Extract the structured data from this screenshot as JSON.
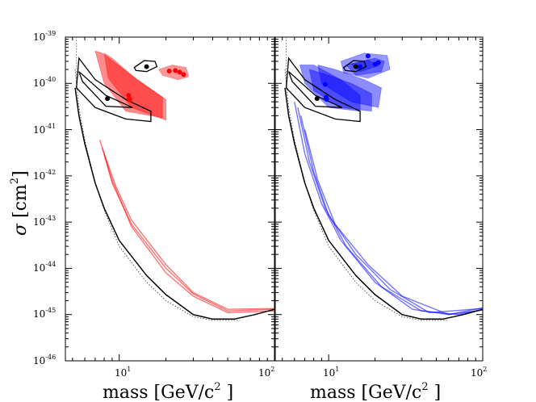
{
  "chart_data": {
    "type": "line",
    "ylabel_symbol": "σ",
    "ylabel_unit": "[cm",
    "ylabel_exp": "2",
    "ylabel_close": "]",
    "y_tick_labels": [
      {
        "base": "10",
        "exp": "-39"
      },
      {
        "base": "10",
        "exp": "-40"
      },
      {
        "base": "10",
        "exp": "-41"
      },
      {
        "base": "10",
        "exp": "-42"
      },
      {
        "base": "10",
        "exp": "-43"
      },
      {
        "base": "10",
        "exp": "-44"
      },
      {
        "base": "10",
        "exp": "-45"
      },
      {
        "base": "10",
        "exp": "-46"
      }
    ],
    "panels": [
      {
        "name": "red",
        "xlabel": "mass [GeV/c",
        "xlabel_exp": "2",
        "xlabel_close": " ]",
        "x_tick_labels": [
          {
            "base": "10",
            "exp": "1"
          },
          {
            "base": "10",
            "exp": "2"
          }
        ],
        "color": "#ff0000",
        "limit_curves": [
          [
            [
              7.5,
              6e-42
            ],
            [
              9,
              8e-43
            ],
            [
              12,
              8e-44
            ],
            [
              20,
              8e-45
            ],
            [
              30,
              2.5e-45
            ],
            [
              50,
              1.1e-45
            ],
            [
              100,
              1.2e-45
            ]
          ],
          [
            [
              7.8,
              4e-42
            ],
            [
              9,
              7e-43
            ],
            [
              12,
              9e-44
            ],
            [
              20,
              1e-44
            ],
            [
              30,
              2.8e-45
            ],
            [
              50,
              1.2e-45
            ],
            [
              100,
              1.3e-45
            ]
          ],
          [
            [
              8,
              3e-42
            ],
            [
              9.5,
              6e-43
            ],
            [
              12,
              1.1e-43
            ],
            [
              20,
              1.2e-44
            ],
            [
              30,
              3e-45
            ],
            [
              50,
              1.3e-45
            ],
            [
              100,
              1.35e-45
            ]
          ]
        ],
        "regions": [
          [
            [
              7,
              5e-40
            ],
            [
              7.8,
              4.5e-40
            ],
            [
              12,
              1.5e-40
            ],
            [
              19,
              5e-41
            ],
            [
              19,
              1.8e-41
            ],
            [
              11,
              2.5e-41
            ],
            [
              8,
              1e-40
            ]
          ],
          [
            [
              8,
              4.5e-40
            ],
            [
              9,
              3.5e-40
            ],
            [
              13,
              1.2e-40
            ],
            [
              20,
              4.5e-41
            ],
            [
              20,
              1.6e-41
            ],
            [
              12,
              3e-41
            ],
            [
              8.5,
              1.3e-40
            ]
          ]
        ],
        "peaks": [
          [
            11.5,
            5.5e-41
          ],
          [
            11.6,
            4.7e-41
          ],
          [
            11.7,
            4.4e-41
          ]
        ],
        "upper_regions": [
          [
            [
              18,
              2e-40
            ],
            [
              22,
              2.5e-40
            ],
            [
              27,
              2.2e-40
            ],
            [
              28,
              1.4e-40
            ],
            [
              24,
              1.2e-40
            ],
            [
              19,
              1.5e-40
            ]
          ]
        ],
        "upper_points": [
          [
            21,
            1.85e-40
          ],
          [
            23,
            1.9e-40
          ],
          [
            24.5,
            1.75e-40
          ],
          [
            26,
            1.55e-40
          ]
        ]
      },
      {
        "name": "blue",
        "xlabel": "mass [GeV/c",
        "xlabel_exp": "2",
        "xlabel_close": " ]",
        "x_tick_labels": [
          {
            "base": "10",
            "exp": "1"
          },
          {
            "base": "10",
            "exp": "2"
          }
        ],
        "color": "#0000ff",
        "limit_curves": [
          [
            [
              6,
              4e-41
            ],
            [
              7,
              3e-42
            ],
            [
              9,
              2.5e-43
            ],
            [
              12,
              4e-44
            ],
            [
              20,
              5e-45
            ],
            [
              35,
              1.3e-45
            ],
            [
              60,
              1e-45
            ],
            [
              100,
              1.25e-45
            ]
          ],
          [
            [
              6.3,
              3e-41
            ],
            [
              7.5,
              2e-42
            ],
            [
              9.5,
              2e-43
            ],
            [
              13,
              3e-44
            ],
            [
              22,
              4e-45
            ],
            [
              40,
              1.2e-45
            ],
            [
              70,
              1e-45
            ],
            [
              100,
              1.3e-45
            ]
          ],
          [
            [
              6.6,
              2e-41
            ],
            [
              8,
              1.2e-42
            ],
            [
              10,
              1.4e-43
            ],
            [
              15,
              2e-44
            ],
            [
              25,
              3.5e-45
            ],
            [
              45,
              1.1e-45
            ],
            [
              100,
              1.35e-45
            ]
          ],
          [
            [
              7,
              1e-41
            ],
            [
              8.5,
              8e-43
            ],
            [
              11,
              9e-44
            ],
            [
              18,
              1.2e-44
            ],
            [
              30,
              2.5e-45
            ],
            [
              60,
              1e-45
            ],
            [
              100,
              1.4e-45
            ]
          ]
        ],
        "regions": [
          [
            [
              6.5,
              2.5e-40
            ],
            [
              8,
              2.5e-40
            ],
            [
              12,
              1.2e-40
            ],
            [
              16,
              5.5e-41
            ],
            [
              16,
              2.5e-41
            ],
            [
              10,
              3e-41
            ],
            [
              7,
              1e-40
            ]
          ],
          [
            [
              7.5,
              2e-40
            ],
            [
              10,
              1.5e-40
            ],
            [
              14,
              1e-40
            ],
            [
              19,
              6e-41
            ],
            [
              19,
              2.5e-41
            ],
            [
              12,
              3e-41
            ],
            [
              8,
              7e-41
            ]
          ],
          [
            [
              8.5,
              2.5e-40
            ],
            [
              11,
              2e-40
            ],
            [
              17,
              1.2e-40
            ],
            [
              22,
              8e-41
            ],
            [
              21,
              3e-41
            ],
            [
              14,
              4e-41
            ],
            [
              9,
              1e-40
            ]
          ]
        ],
        "points": [
          [
            9.5,
            9.5e-41
          ],
          [
            9.6,
            5e-41
          ],
          [
            9.7,
            4.5e-41
          ]
        ],
        "upper_regions": [
          [
            [
              12,
              3e-40
            ],
            [
              17,
              4.5e-40
            ],
            [
              24,
              4e-40
            ],
            [
              25,
              2e-40
            ],
            [
              18,
              1.3e-40
            ],
            [
              12.5,
              1.7e-40
            ]
          ],
          [
            [
              13,
              2.5e-40
            ],
            [
              20,
              3.5e-40
            ],
            [
              23,
              3e-40
            ],
            [
              22,
              1.8e-40
            ],
            [
              15,
              1.5e-40
            ]
          ],
          [
            [
              14,
              2.6e-40
            ],
            [
              18,
              3.2e-40
            ],
            [
              21,
              2.4e-40
            ],
            [
              16,
              1.8e-40
            ]
          ]
        ],
        "upper_points": [
          [
            16,
            2.3e-40
          ],
          [
            18,
            3.9e-40
          ],
          [
            20,
            2.6e-40
          ],
          [
            21,
            2.8e-40
          ]
        ]
      }
    ],
    "black_limit": [
      [
        5.2,
        8e-41
      ],
      [
        5.5,
        2e-41
      ],
      [
        6,
        5e-42
      ],
      [
        7,
        7e-43
      ],
      [
        8,
        2e-43
      ],
      [
        10,
        4e-44
      ],
      [
        15,
        7e-45
      ],
      [
        20,
        2.7e-45
      ],
      [
        30,
        1e-45
      ],
      [
        40,
        8e-46
      ],
      [
        55,
        8e-46
      ],
      [
        75,
        1e-45
      ],
      [
        100,
        1.3e-45
      ]
    ],
    "dotted_limit": [
      [
        5.2,
        2e-40
      ],
      [
        5.5,
        3e-41
      ],
      [
        6,
        6e-42
      ],
      [
        7,
        7e-43
      ],
      [
        8,
        1.8e-43
      ],
      [
        10,
        3e-44
      ],
      [
        15,
        5e-45
      ],
      [
        20,
        2e-45
      ],
      [
        30,
        9e-46
      ],
      [
        40,
        7.5e-46
      ],
      [
        60,
        7.5e-46
      ]
    ],
    "contour_outer": [
      [
        5.5,
        3.5e-40
      ],
      [
        7,
        1.2e-40
      ],
      [
        11,
        4.5e-41
      ],
      [
        16,
        2.5e-41
      ],
      [
        16,
        1.5e-41
      ],
      [
        11,
        1.7e-41
      ],
      [
        7,
        3e-41
      ],
      [
        5.3,
        8e-41
      ]
    ],
    "contour_inner": [
      [
        5.5,
        1.8e-40
      ],
      [
        8.2,
        5.5e-41
      ],
      [
        12.2,
        3e-41
      ],
      [
        8.2,
        3.2e-41
      ],
      [
        5.8,
        1.1e-40
      ]
    ],
    "contour_upper": [
      [
        12.5,
        2.2e-40
      ],
      [
        14.5,
        3.1e-40
      ],
      [
        17,
        3e-40
      ],
      [
        17.5,
        2.3e-40
      ],
      [
        15,
        1.8e-40
      ],
      [
        12.8,
        1.9e-40
      ]
    ],
    "black_points": [
      [
        8.4,
        4.7e-41
      ],
      [
        15,
        2.3e-40
      ]
    ],
    "xlim": [
      4.5,
      100
    ],
    "ylim": [
      1e-46,
      1e-39
    ]
  }
}
